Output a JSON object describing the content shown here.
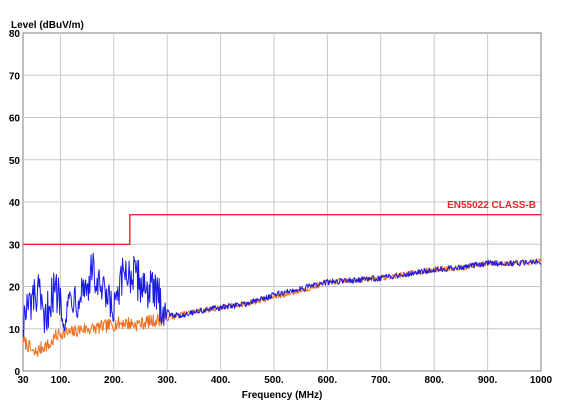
{
  "chart_data": {
    "type": "line",
    "title": "",
    "ylabel": "Level (dBuV/m)",
    "xlabel": "Frequency (MHz)",
    "xlim": [
      30,
      1000
    ],
    "ylim": [
      0,
      80
    ],
    "grid": true,
    "x_ticks": [
      {
        "value": 30,
        "label": "30"
      },
      {
        "value": 100,
        "label": "100."
      },
      {
        "value": 200,
        "label": "200."
      },
      {
        "value": 300,
        "label": "300."
      },
      {
        "value": 400,
        "label": "400."
      },
      {
        "value": 500,
        "label": "500."
      },
      {
        "value": 600,
        "label": "600."
      },
      {
        "value": 700,
        "label": "700."
      },
      {
        "value": 800,
        "label": "800."
      },
      {
        "value": 900,
        "label": "900."
      },
      {
        "value": 1000,
        "label": "1000"
      }
    ],
    "y_ticks": [
      0,
      10,
      20,
      30,
      40,
      50,
      60,
      70,
      80
    ],
    "limit_line": {
      "label": "EN55022 CLASS-B",
      "color": "#e8262b",
      "points": [
        [
          30,
          30
        ],
        [
          230,
          30
        ],
        [
          230,
          37
        ],
        [
          1000,
          37
        ]
      ]
    },
    "series": [
      {
        "color": "#1a1ae6",
        "points": [
          [
            30,
            12
          ],
          [
            40,
            15
          ],
          [
            50,
            17
          ],
          [
            60,
            18
          ],
          [
            70,
            10
          ],
          [
            80,
            17
          ],
          [
            90,
            19
          ],
          [
            100,
            18
          ],
          [
            110,
            12
          ],
          [
            120,
            19
          ],
          [
            130,
            17
          ],
          [
            140,
            20
          ],
          [
            150,
            20
          ],
          [
            160,
            24
          ],
          [
            170,
            20
          ],
          [
            180,
            18
          ],
          [
            190,
            16
          ],
          [
            200,
            14
          ],
          [
            210,
            18
          ],
          [
            220,
            24
          ],
          [
            230,
            23
          ],
          [
            240,
            22
          ],
          [
            250,
            21
          ],
          [
            260,
            20
          ],
          [
            270,
            19
          ],
          [
            280,
            18
          ],
          [
            290,
            16
          ],
          [
            300,
            14
          ],
          [
            320,
            13
          ],
          [
            350,
            14
          ],
          [
            400,
            15
          ],
          [
            450,
            16
          ],
          [
            500,
            18
          ],
          [
            550,
            19.5
          ],
          [
            600,
            21
          ],
          [
            650,
            21.5
          ],
          [
            700,
            22
          ],
          [
            750,
            23
          ],
          [
            800,
            24
          ],
          [
            850,
            24.5
          ],
          [
            900,
            25.5
          ],
          [
            950,
            25.5
          ],
          [
            1000,
            26
          ]
        ]
      },
      {
        "color": "#f07020",
        "points": [
          [
            30,
            7
          ],
          [
            40,
            6
          ],
          [
            50,
            4
          ],
          [
            60,
            5
          ],
          [
            70,
            6
          ],
          [
            80,
            6
          ],
          [
            90,
            8
          ],
          [
            100,
            9
          ],
          [
            120,
            9
          ],
          [
            140,
            10
          ],
          [
            160,
            10
          ],
          [
            180,
            10.5
          ],
          [
            200,
            11
          ],
          [
            220,
            11.5
          ],
          [
            240,
            11
          ],
          [
            260,
            11.5
          ],
          [
            280,
            12
          ],
          [
            300,
            12.5
          ],
          [
            350,
            14
          ],
          [
            400,
            15
          ],
          [
            450,
            16
          ],
          [
            500,
            17.5
          ],
          [
            550,
            19
          ],
          [
            600,
            21
          ],
          [
            650,
            21.5
          ],
          [
            700,
            22
          ],
          [
            750,
            23
          ],
          [
            800,
            24
          ],
          [
            850,
            24.5
          ],
          [
            900,
            25.5
          ],
          [
            950,
            25.5
          ],
          [
            1000,
            26
          ]
        ]
      }
    ]
  }
}
